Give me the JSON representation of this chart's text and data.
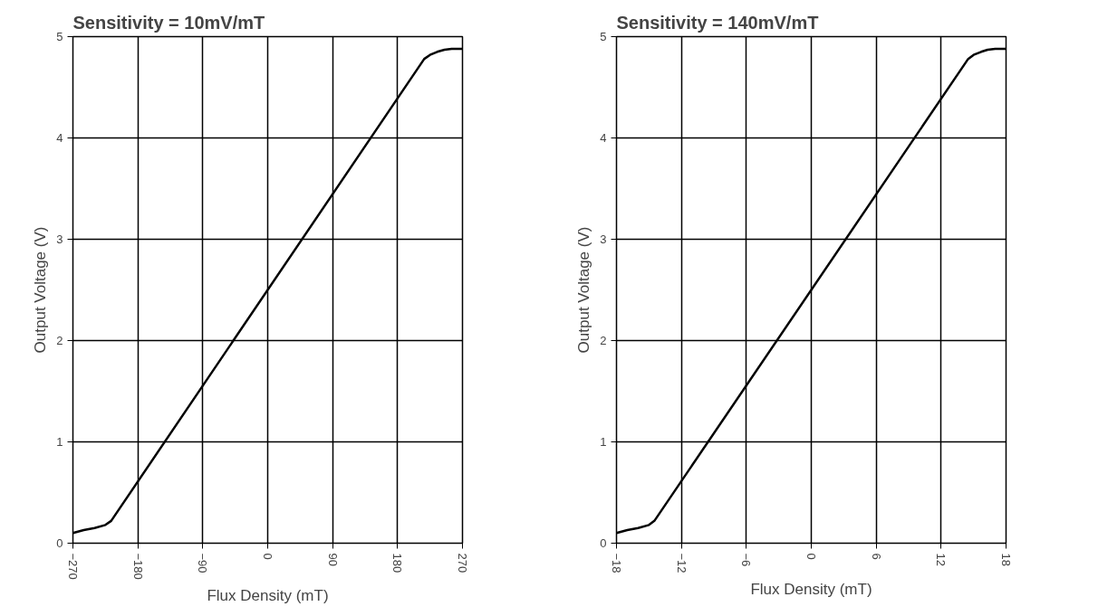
{
  "chart_data": [
    {
      "type": "line",
      "title": "Sensitivity = 10mV/mT",
      "xlabel": "Flux Density (mT)",
      "ylabel": "Output Voltage (V)",
      "xlim": [
        -270,
        270
      ],
      "ylim": [
        0,
        5
      ],
      "xticks": [
        -270,
        -180,
        -90,
        0,
        90,
        180,
        270
      ],
      "yticks": [
        0,
        1,
        2,
        3,
        4,
        5
      ],
      "grid": true,
      "series": [
        {
          "color": "#000000",
          "x": [
            -270,
            -255,
            -240,
            -225,
            -217,
            217,
            225,
            235,
            245,
            255,
            270
          ],
          "values": [
            0.1,
            0.13,
            0.15,
            0.18,
            0.22,
            4.78,
            4.82,
            4.85,
            4.87,
            4.88,
            4.88
          ]
        }
      ]
    },
    {
      "type": "line",
      "title": "Sensitivity = 140mV/mT",
      "xlabel": "Flux Density (mT)",
      "ylabel": "Output Voltage (V)",
      "xlim": [
        -18,
        18
      ],
      "ylim": [
        0,
        5
      ],
      "xticks": [
        -18,
        -12,
        -6,
        0,
        6,
        12,
        18
      ],
      "yticks": [
        0,
        1,
        2,
        3,
        4,
        5
      ],
      "grid": true,
      "series": [
        {
          "color": "#000000",
          "x": [
            -18,
            -17,
            -16,
            -15,
            -14.5,
            14.5,
            15,
            15.7,
            16.3,
            17,
            18
          ],
          "values": [
            0.1,
            0.13,
            0.15,
            0.18,
            0.22,
            4.78,
            4.82,
            4.85,
            4.87,
            4.88,
            4.88
          ]
        }
      ]
    }
  ]
}
